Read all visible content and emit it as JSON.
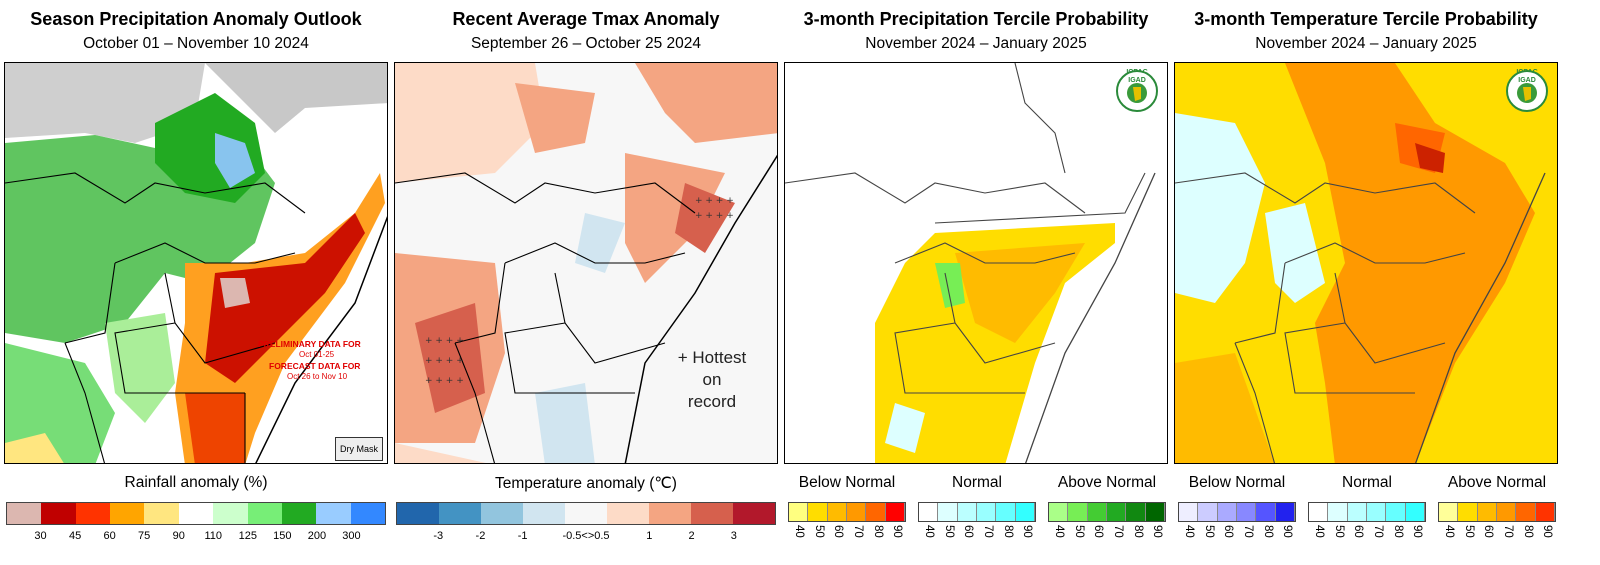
{
  "panels": [
    {
      "title": "Season Precipitation Anomaly Outlook",
      "subtitle": "October 01 – November 10 2024",
      "legend_title": "Rainfall anomaly (%)",
      "ticks": [
        "30",
        "45",
        "60",
        "75",
        "90",
        "110",
        "125",
        "150",
        "200",
        "300"
      ],
      "colors": [
        "#dcb7b0",
        "#c00000",
        "#ff3300",
        "#ffa500",
        "#ffe680",
        "#ffffff",
        "#ccffcc",
        "#77ee77",
        "#22aa22",
        "#99ccff",
        "#3388ff"
      ],
      "annotations": {
        "line1": "PRELIMINARY DATA FOR",
        "line2": "Oct 01-25",
        "line3": "FORECAST DATA FOR",
        "line4": "Oct 26 to Nov 10",
        "dry_mask": "Dry Mask"
      }
    },
    {
      "title": "Recent Average Tmax Anomaly",
      "subtitle": "September 26 – October 25 2024",
      "legend_title": "Temperature anomaly (℃)",
      "ticks": [
        "-3",
        "-2",
        "-1",
        "-0.5<>0.5",
        "1",
        "2",
        "3"
      ],
      "colors": [
        "#2166ac",
        "#4393c3",
        "#92c5de",
        "#d1e5f0",
        "#f7f7f7",
        "#fddbc7",
        "#f4a582",
        "#d6604d",
        "#b2182b"
      ],
      "annotations": {
        "hottest_line1": "+ Hottest",
        "hottest_line2": "on",
        "hottest_line3": "record"
      }
    },
    {
      "title": "3-month Precipitation Tercile Probability",
      "subtitle": "November 2024 – January 2025",
      "logo_text_top": "IGAD",
      "logo_text_bottom": "ICPAC",
      "legend_groups": [
        {
          "label": "Below Normal",
          "ticks": [
            "40",
            "50",
            "60",
            "70",
            "80",
            "90"
          ],
          "colors": [
            "#ffff80",
            "#ffdd00",
            "#ffbb00",
            "#ff9900",
            "#ff6600",
            "#ff0000"
          ]
        },
        {
          "label": "Normal",
          "ticks": [
            "40",
            "50",
            "60",
            "70",
            "80",
            "90"
          ],
          "colors": [
            "#ffffff",
            "#ddffff",
            "#bbffff",
            "#99ffff",
            "#66ffff",
            "#33ffff"
          ]
        },
        {
          "label": "Above Normal",
          "ticks": [
            "40",
            "50",
            "60",
            "70",
            "80",
            "90"
          ],
          "colors": [
            "#aaff88",
            "#77ee55",
            "#44cc33",
            "#22aa22",
            "#118811",
            "#006600"
          ]
        }
      ]
    },
    {
      "title": "3-month Temperature Tercile Probability",
      "subtitle": "November 2024 – January 2025",
      "logo_text_top": "IGAD",
      "logo_text_bottom": "ICPAC",
      "legend_groups": [
        {
          "label": "Below Normal",
          "ticks": [
            "40",
            "50",
            "60",
            "70",
            "80",
            "90"
          ],
          "colors": [
            "#eeeeff",
            "#ccccff",
            "#aaaaff",
            "#8888ff",
            "#5555ff",
            "#2222ee"
          ]
        },
        {
          "label": "Normal",
          "ticks": [
            "40",
            "50",
            "60",
            "70",
            "80",
            "90"
          ],
          "colors": [
            "#ffffff",
            "#ddffff",
            "#bbffff",
            "#99ffff",
            "#66ffff",
            "#33ffff"
          ]
        },
        {
          "label": "Above Normal",
          "ticks": [
            "40",
            "50",
            "60",
            "70",
            "80",
            "90"
          ],
          "colors": [
            "#ffff99",
            "#ffdd00",
            "#ffbb00",
            "#ff9900",
            "#ff6600",
            "#ff3300"
          ]
        }
      ]
    }
  ]
}
